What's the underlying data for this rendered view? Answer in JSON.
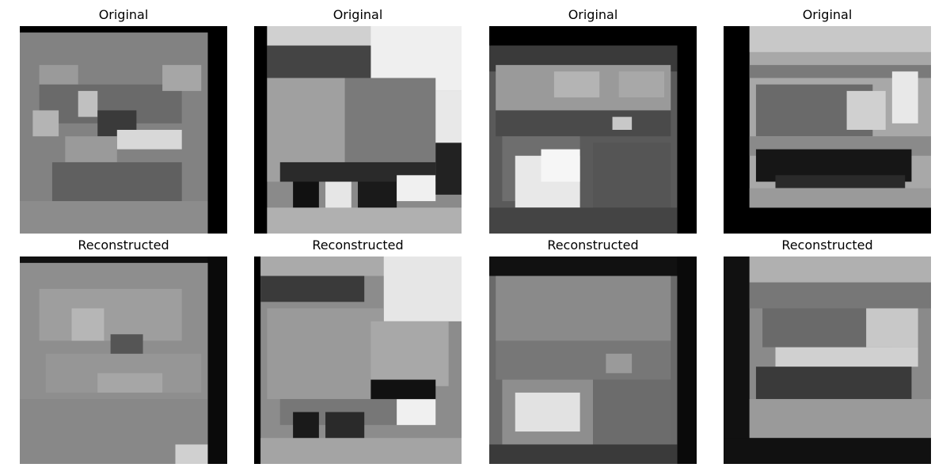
{
  "panels": [
    {
      "title": "Original"
    },
    {
      "title": "Original"
    },
    {
      "title": "Original"
    },
    {
      "title": "Original"
    },
    {
      "title": "Reconstructed"
    },
    {
      "title": "Reconstructed"
    },
    {
      "title": "Reconstructed"
    },
    {
      "title": "Reconstructed"
    }
  ]
}
